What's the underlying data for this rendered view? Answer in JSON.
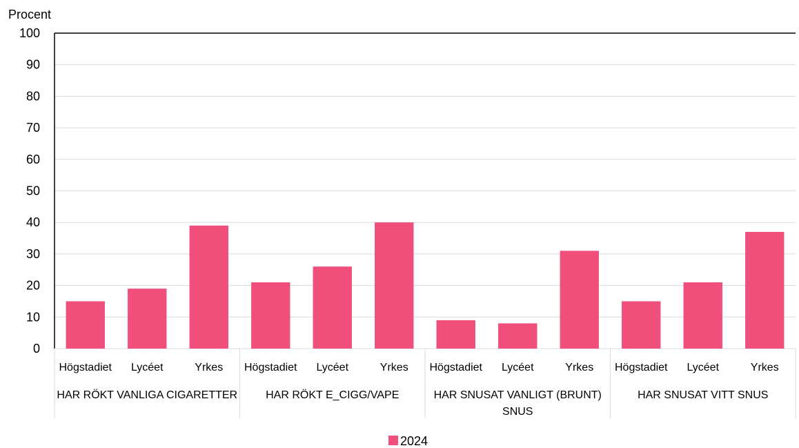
{
  "chart_data": {
    "type": "bar",
    "ylabel": "Procent",
    "ylim": [
      0,
      100
    ],
    "yticks": [
      0,
      10,
      20,
      30,
      40,
      50,
      60,
      70,
      80,
      90,
      100
    ],
    "grid": true,
    "groups": [
      {
        "label_lines": [
          "HAR RÖKT VANLIGA CIGARETTER"
        ],
        "categories": [
          "Högstadiet",
          "Lycéet",
          "Yrkes"
        ],
        "values": [
          15,
          19,
          39
        ]
      },
      {
        "label_lines": [
          "HAR RÖKT E_CIGG/VAPE"
        ],
        "categories": [
          "Högstadiet",
          "Lycéet",
          "Yrkes"
        ],
        "values": [
          21,
          26,
          40
        ]
      },
      {
        "label_lines": [
          "HAR SNUSAT VANLIGT (BRUNT)",
          "SNUS"
        ],
        "categories": [
          "Högstadiet",
          "Lycéet",
          "Yrkes"
        ],
        "values": [
          9,
          8,
          31
        ]
      },
      {
        "label_lines": [
          "HAR SNUSAT VITT SNUS"
        ],
        "categories": [
          "Högstadiet",
          "Lycéet",
          "Yrkes"
        ],
        "values": [
          15,
          21,
          37
        ]
      }
    ],
    "series": [
      {
        "name": "2024",
        "color": "#EF4F7A"
      }
    ],
    "legend": "bottom-center"
  }
}
